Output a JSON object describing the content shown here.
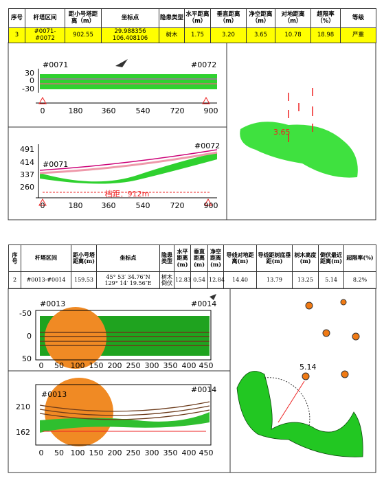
{
  "report1": {
    "table": {
      "headers": [
        "序号",
        "杆塔区间",
        "距小号塔距离（m）",
        "坐标点",
        "隐患类型",
        "水平距离（m）",
        "垂直距离（m）",
        "净空距离（m）",
        "对地距离（m）",
        "超限率（%）",
        "等级"
      ],
      "row": [
        "3",
        "#0071-#0072",
        "902.55",
        [
          "29.988356",
          "106.408106"
        ],
        "树木",
        "1.75",
        "3.20",
        "3.65",
        "10.78",
        "18.98",
        "严重"
      ]
    },
    "top_view": {
      "start": "#0071",
      "end": "#0072",
      "y_ticks": [
        "30",
        "0",
        "-30"
      ],
      "x_ticks": [
        "0",
        "180",
        "360",
        "540",
        "720",
        "900"
      ]
    },
    "side_view": {
      "start": "#0071",
      "end": "#0072",
      "y_ticks": [
        "491",
        "414",
        "337",
        "260"
      ],
      "x_ticks": [
        "0",
        "180",
        "360",
        "540",
        "720",
        "900"
      ],
      "span": "档距：912m"
    },
    "cloud_view": {
      "distance": "3.65"
    }
  },
  "report2": {
    "table": {
      "headers": [
        "序号",
        "杆塔区间",
        "距小号塔距离(m)",
        "坐标点",
        "隐患类型",
        "水平距离(m)",
        "垂直距离(m)",
        "净空距离(m)",
        "导线对地距离(m)",
        "导线距树底垂距(m)",
        "树木高度(m)",
        "倒伏最近距离(m)",
        "超限率(%)"
      ],
      "row": [
        "2",
        "#0013-#0014",
        "159.53",
        [
          "45° 53′ 34.76″N",
          "129° 14′ 19.56″E"
        ],
        "树木倒伏",
        "12.83",
        "0.54",
        "12.84",
        "14.40",
        "13.79",
        "13.25",
        "5.14",
        "8.2%"
      ]
    },
    "top_view": {
      "start": "#0013",
      "end": "#0014",
      "y_ticks": [
        "-50",
        "0",
        "50"
      ],
      "x_ticks": [
        "0",
        "50",
        "100",
        "150",
        "200",
        "250",
        "300",
        "350",
        "400",
        "450"
      ]
    },
    "side_view": {
      "start": "#0013",
      "end": "#0014",
      "y_ticks": [
        "210",
        "162"
      ],
      "x_ticks": [
        "0",
        "50",
        "100",
        "150",
        "200",
        "250",
        "300",
        "350",
        "400",
        "450"
      ]
    },
    "cloud_view": {
      "distance": "5.14"
    }
  }
}
